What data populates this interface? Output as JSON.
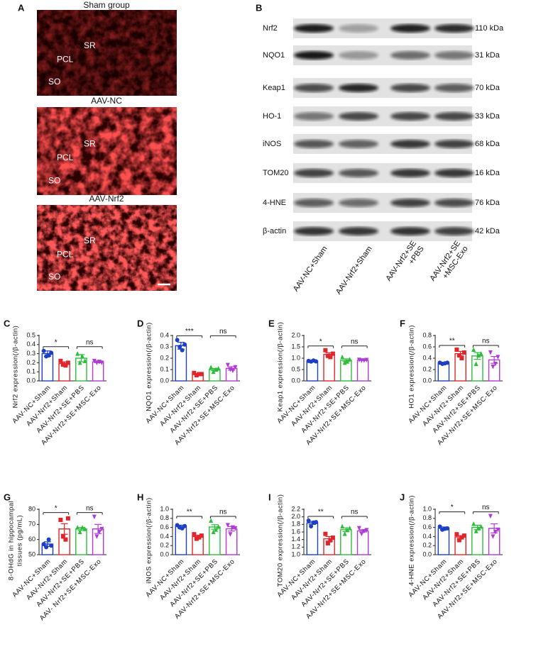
{
  "panel_a": {
    "label": "A",
    "images": [
      {
        "title": "Sham group",
        "regions": [
          "SR",
          "PCL",
          "SO"
        ]
      },
      {
        "title": "AAV-NC",
        "regions": [
          "SR",
          "PCL",
          "SO"
        ]
      },
      {
        "title": "AAV-Nrf2",
        "regions": [
          "SR",
          "PCL",
          "SO"
        ]
      }
    ]
  },
  "panel_b": {
    "label": "B",
    "rows": [
      {
        "protein": "Nrf2",
        "size": "110 kDa"
      },
      {
        "protein": "NQO1",
        "size": "31 kDa"
      },
      {
        "protein": "Keap1",
        "size": "70 kDa"
      },
      {
        "protein": "HO-1",
        "size": "33 kDa"
      },
      {
        "protein": "iNOS",
        "size": "68 kDa"
      },
      {
        "protein": "TOM20",
        "size": "16 kDa"
      },
      {
        "protein": "4-HNE",
        "size": "76 kDa"
      },
      {
        "protein": "β-actin",
        "size": "42 kDa"
      }
    ],
    "columns": [
      [
        "AAV-NC+Sham"
      ],
      [
        "AAV-Nrf2+Sham"
      ],
      [
        "AAV-Nrf2+SE",
        "+PBS"
      ],
      [
        "AAV-Nrf2+SE",
        "+MSC-Exo"
      ]
    ]
  },
  "chart_data": [
    {
      "type": "bar",
      "panel": "C",
      "y_label": [
        "Nrf2 expression(/β-actin)"
      ],
      "categories": [
        "AAV-NC+Sham",
        "AAV-Nrf2+Sham",
        "AAV-Nrf2+SE+PBS",
        "AAV-Nrf2+SE+MSC-Exo"
      ],
      "colors": [
        "#1c3fc4",
        "#e0262a",
        "#2dbd3c",
        "#b03ad6"
      ],
      "values": [
        0.3,
        0.19,
        0.25,
        0.21
      ],
      "errors": [
        0.03,
        0.02,
        0.04,
        0.01
      ],
      "points": [
        [
          0.33,
          0.27,
          0.28,
          0.31
        ],
        [
          0.22,
          0.18,
          0.17,
          0.2
        ],
        [
          0.3,
          0.2,
          0.27,
          0.22
        ],
        [
          0.22,
          0.2,
          0.21,
          0.2
        ]
      ],
      "ylim": [
        0,
        0.5
      ],
      "yticks": [
        {
          "value": 0,
          "label": "0.0"
        },
        0.1,
        0.2,
        0.3,
        0.4,
        0.5
      ],
      "annotations": [
        {
          "text": "*",
          "from": 0,
          "to": 1
        },
        {
          "text": "ns",
          "from": 2,
          "to": 3
        }
      ]
    },
    {
      "type": "bar",
      "panel": "D",
      "y_label": [
        "NQO1 expression(/β-actin)"
      ],
      "categories": [
        "AAV-NC+Sham",
        "AAV-Nrf2+Sham",
        "AAV-Nrf2+SE+PBS",
        "AAV-Nrf2+SE+MSC-Exo"
      ],
      "colors": [
        "#1c3fc4",
        "#e0262a",
        "#2dbd3c",
        "#b03ad6"
      ],
      "values": [
        0.31,
        0.06,
        0.1,
        0.11
      ],
      "errors": [
        0.03,
        0.005,
        0.01,
        0.015
      ],
      "points": [
        [
          0.36,
          0.3,
          0.27,
          0.32
        ],
        [
          0.07,
          0.05,
          0.06,
          0.06
        ],
        [
          0.12,
          0.08,
          0.1,
          0.11
        ],
        [
          0.14,
          0.1,
          0.09,
          0.12
        ]
      ],
      "ylim": [
        0,
        0.4
      ],
      "yticks": [
        {
          "value": 0,
          "label": "0.0"
        },
        0.1,
        0.2,
        0.3,
        0.4
      ],
      "annotations": [
        {
          "text": "***",
          "from": 0,
          "to": 1
        },
        {
          "text": "ns",
          "from": 2,
          "to": 3
        }
      ]
    },
    {
      "type": "bar",
      "panel": "E",
      "y_label": [
        "Keap1 expression(/β-actin)"
      ],
      "categories": [
        "AAV-NC+Sham",
        "AAV-Nrf2+Sham",
        "AAV-Nrf2+SE+PBS",
        "AAV-Nrf2+SE+MSC-Exo"
      ],
      "colors": [
        "#1c3fc4",
        "#e0262a",
        "#2dbd3c",
        "#b03ad6"
      ],
      "values": [
        0.87,
        1.17,
        0.91,
        0.91
      ],
      "errors": [
        0.02,
        0.07,
        0.06,
        0.01
      ],
      "points": [
        [
          0.88,
          0.85,
          0.9,
          0.86
        ],
        [
          1.35,
          1.1,
          1.05,
          1.2
        ],
        [
          1.05,
          0.8,
          0.85,
          0.95
        ],
        [
          0.93,
          0.9,
          0.9,
          0.92
        ]
      ],
      "ylim": [
        0,
        2
      ],
      "yticks": [
        {
          "value": 0,
          "label": "0.0"
        },
        0.5,
        {
          "value": 1,
          "label": "1.0"
        },
        1.5,
        {
          "value": 2,
          "label": "2.0"
        }
      ],
      "annotations": [
        {
          "text": "*",
          "from": 0,
          "to": 1
        },
        {
          "text": "ns",
          "from": 2,
          "to": 3
        }
      ]
    },
    {
      "type": "bar",
      "panel": "F",
      "y_label": [
        "HO1 expression(/β-actin)"
      ],
      "categories": [
        "AAV-NC+Sham",
        "AAV-Nrf2+Sham",
        "AAV-Nrf2+SE+PBS",
        "AAV-Nrf2+SE+MSC-Exo"
      ],
      "colors": [
        "#1c3fc4",
        "#e0262a",
        "#2dbd3c",
        "#b03ad6"
      ],
      "values": [
        0.31,
        0.48,
        0.44,
        0.37
      ],
      "errors": [
        0.01,
        0.04,
        0.06,
        0.06
      ],
      "points": [
        [
          0.32,
          0.3,
          0.31,
          0.32
        ],
        [
          0.55,
          0.45,
          0.4,
          0.5
        ],
        [
          0.55,
          0.3,
          0.45,
          0.48
        ],
        [
          0.5,
          0.25,
          0.3,
          0.42
        ]
      ],
      "ylim": [
        0,
        0.8
      ],
      "yticks": [
        {
          "value": 0,
          "label": "0.0"
        },
        0.2,
        0.4,
        0.6,
        0.8
      ],
      "annotations": [
        {
          "text": "**",
          "from": 0,
          "to": 1
        },
        {
          "text": "ns",
          "from": 2,
          "to": 3
        }
      ]
    },
    {
      "type": "bar",
      "panel": "G",
      "y_label": [
        "8-OHdG in hippocampal",
        "tissues (pg/mL)"
      ],
      "categories": [
        "AAV-NC+Sham",
        "AAV-Nrf2+Sham",
        "AAV-Nrf2+SE+PBS",
        "AAV- Nrf2+SE+MSC-Exo"
      ],
      "colors": [
        "#1c3fc4",
        "#e0262a",
        "#2dbd3c",
        "#b03ad6"
      ],
      "values": [
        57,
        67,
        67,
        67
      ],
      "errors": [
        1.5,
        3.5,
        1.0,
        3.0
      ],
      "points": [
        [
          57,
          55,
          60,
          56
        ],
        [
          73,
          62,
          60,
          74
        ],
        [
          68,
          65,
          68,
          67
        ],
        [
          75,
          62,
          65,
          67
        ]
      ],
      "ylim": [
        50,
        80
      ],
      "yticks": [
        50,
        60,
        70,
        80
      ],
      "annotations": [
        {
          "text": "*",
          "from": 0,
          "to": 1
        },
        {
          "text": "ns",
          "from": 2,
          "to": 3
        }
      ]
    },
    {
      "type": "bar",
      "panel": "H",
      "y_label": [
        "iNOS expression(/β-actin)"
      ],
      "categories": [
        "AAV-NC+Sham",
        "AAV-Nrf2+Sham",
        "AAV-Nrf2+SE+PBS",
        "AAV-Nrf2+SE+MSC-Exo"
      ],
      "colors": [
        "#1c3fc4",
        "#e0262a",
        "#2dbd3c",
        "#b03ad6"
      ],
      "values": [
        0.62,
        0.4,
        0.61,
        0.57
      ],
      "errors": [
        0.03,
        0.03,
        0.05,
        0.05
      ],
      "points": [
        [
          0.65,
          0.6,
          0.58,
          0.63
        ],
        [
          0.45,
          0.35,
          0.38,
          0.42
        ],
        [
          0.75,
          0.5,
          0.55,
          0.62
        ],
        [
          0.65,
          0.45,
          0.6,
          0.58
        ]
      ],
      "ylim": [
        0,
        1
      ],
      "yticks": [
        {
          "value": 0,
          "label": "0.0"
        },
        0.2,
        0.4,
        0.6,
        0.8,
        {
          "value": 1,
          "label": "1.0"
        }
      ],
      "annotations": [
        {
          "text": "**",
          "from": 0,
          "to": 1
        },
        {
          "text": "ns",
          "from": 2,
          "to": 3
        }
      ]
    },
    {
      "type": "bar",
      "panel": "I",
      "y_label": [
        "TOM20 expression(/β-actin)"
      ],
      "categories": [
        "AAV-NC+Sham",
        "AAV-Nrf2+Sham",
        "AAV-Nrf2+SE+PBS",
        "AAV-Nrf2+SE+MSC-Exo"
      ],
      "colors": [
        "#1c3fc4",
        "#e0262a",
        "#2dbd3c",
        "#b03ad6"
      ],
      "values": [
        1.84,
        1.42,
        1.66,
        1.63
      ],
      "errors": [
        0.04,
        0.06,
        0.05,
        0.03
      ],
      "points": [
        [
          1.9,
          1.75,
          1.85,
          1.86
        ],
        [
          1.55,
          1.3,
          1.38,
          1.45
        ],
        [
          1.75,
          1.55,
          1.65,
          1.7
        ],
        [
          1.7,
          1.55,
          1.62,
          1.65
        ]
      ],
      "ylim": [
        1,
        2.2
      ],
      "yticks": [
        {
          "value": 1,
          "label": "1.0"
        },
        1.2,
        1.4,
        1.6,
        1.8,
        {
          "value": 2,
          "label": "2.0"
        },
        2.2
      ],
      "annotations": [
        {
          "text": "**",
          "from": 0,
          "to": 1
        },
        {
          "text": "ns",
          "from": 2,
          "to": 3
        }
      ]
    },
    {
      "type": "bar",
      "panel": "J",
      "y_label": [
        "4-HNE expression(/β-actin)"
      ],
      "categories": [
        "AAV-NC+Sham",
        "AAV-Nrf2+Sham",
        "AAV-Nrf2+SE+PBS",
        "AAV-Nrf2+SE+MSC-Exo"
      ],
      "colors": [
        "#1c3fc4",
        "#e0262a",
        "#2dbd3c",
        "#b03ad6"
      ],
      "values": [
        0.58,
        0.39,
        0.6,
        0.58
      ],
      "errors": [
        0.03,
        0.03,
        0.05,
        0.1
      ],
      "points": [
        [
          0.62,
          0.55,
          0.57,
          0.58
        ],
        [
          0.45,
          0.32,
          0.38,
          0.42
        ],
        [
          0.68,
          0.52,
          0.58,
          0.62
        ],
        [
          0.85,
          0.4,
          0.5,
          0.55
        ]
      ],
      "ylim": [
        0,
        1
      ],
      "yticks": [
        {
          "value": 0,
          "label": "0.0"
        },
        0.2,
        0.4,
        0.6,
        0.8,
        {
          "value": 1,
          "label": "1.0"
        }
      ],
      "annotations": [
        {
          "text": "*",
          "from": 0,
          "to": 1
        },
        {
          "text": "ns",
          "from": 2,
          "to": 3
        }
      ]
    }
  ]
}
